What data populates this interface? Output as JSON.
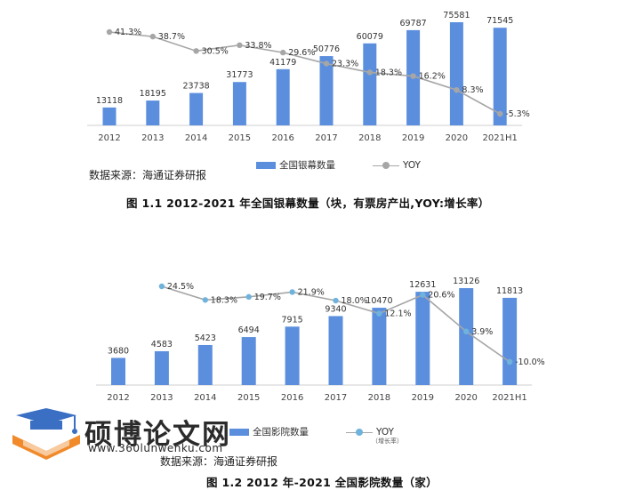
{
  "chart_data": [
    {
      "type": "bar",
      "title": "图 1.1 2012-2021 年全国银幕数量（块，有票房产出,YOY:增长率）",
      "categories": [
        "2012",
        "2013",
        "2014",
        "2015",
        "2016",
        "2017",
        "2018",
        "2019",
        "2020",
        "2021H1"
      ],
      "series": [
        {
          "name": "全国银幕数量",
          "type": "bar",
          "values": [
            13118,
            18195,
            23738,
            31773,
            41179,
            50776,
            60079,
            69787,
            75581,
            71545
          ]
        },
        {
          "name": "YOY",
          "type": "line",
          "values": [
            41.3,
            38.7,
            30.5,
            33.8,
            29.6,
            23.3,
            18.3,
            16.2,
            8.3,
            -5.3
          ]
        }
      ],
      "yoy_labels": [
        "41.3%",
        "38.7%",
        "30.5%",
        "33.8%",
        "29.6%",
        "23.3%",
        "18.3%",
        "16.2%",
        "8.3%",
        "-5.3%"
      ],
      "source": "数据来源：海通证券研报"
    },
    {
      "type": "bar",
      "title": "图 1.2 2012 年-2021 全国影院数量（家）",
      "categories": [
        "2012",
        "2013",
        "2014",
        "2015",
        "2016",
        "2017",
        "2018",
        "2019",
        "2020",
        "2021H1"
      ],
      "series": [
        {
          "name": "全国影院数量",
          "type": "bar",
          "values": [
            3680,
            4583,
            5423,
            6494,
            7915,
            9340,
            10470,
            12631,
            13126,
            11813
          ]
        },
        {
          "name": "YOY",
          "type": "line",
          "values": [
            null,
            24.5,
            18.3,
            19.7,
            21.9,
            18.0,
            12.1,
            20.6,
            3.9,
            -10.0
          ]
        }
      ],
      "yoy_labels": [
        "",
        "24.5%",
        "18.3%",
        "19.7%",
        "21.9%",
        "18.0%",
        "12.1%",
        "20.6%",
        "3.9%",
        "-10.0%"
      ],
      "yoy_note": "（增长率）",
      "source": "数据来源：海通证券研报"
    }
  ],
  "colors": {
    "bar": "#5b8fde",
    "line": "#a6a6a6",
    "dot1": "#a6a6a6",
    "dot2": "#6fb3dd"
  },
  "watermark": {
    "site_name": "硕博论文网",
    "url": "www.360lunwenku.com"
  }
}
